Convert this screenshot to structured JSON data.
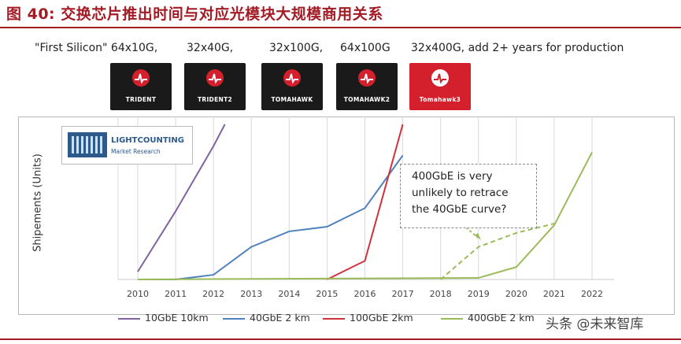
{
  "header": {
    "figure_title": "图 40:  交换芯片推出时间与对应光模块大规模商用关系"
  },
  "chips": {
    "caption_items": [
      "\"First Silicon\" 64x10G,",
      "32x40G,",
      "32x100G,",
      "64x100G",
      "32x400G,  add 2+ years for production"
    ],
    "names": [
      "TRIDENT",
      "TRIDENT2",
      "TOMAHAWK",
      "TOMAHAWK2",
      "Tomahawk3"
    ]
  },
  "logo": {
    "name": "LIGHTCOUNTING",
    "subtitle": "Market Research"
  },
  "annotation": {
    "lines": [
      "400GbE is very",
      "unlikely to retrace",
      "the 40GbE curve?"
    ]
  },
  "watermark": "头条 @未来智库",
  "colors": {
    "title": "#a31c25",
    "purple": "#8064a2",
    "blue": "#4f81bd",
    "red": "#d0313a",
    "green": "#9bbb59",
    "grid": "#d9d9d9"
  },
  "chart_data": {
    "type": "line",
    "ylabel": "Shipements (Units)",
    "xlabel": "",
    "categories": [
      "2010",
      "2011",
      "2012",
      "2013",
      "2014",
      "2015",
      "2016",
      "2017",
      "2018",
      "2019",
      "2020",
      "2021",
      "2022"
    ],
    "ylim": [
      0,
      100
    ],
    "y_tick_labels": "none",
    "grid": true,
    "legend_position": "bottom",
    "series": [
      {
        "name": "10GbE 10km",
        "color": "#8064a2",
        "style": "solid",
        "x": [
          2010,
          2011,
          2012,
          2012.3
        ],
        "y": [
          5,
          44,
          86,
          100
        ]
      },
      {
        "name": "40GbE 2 km",
        "color": "#4f81bd",
        "style": "solid",
        "x": [
          2010,
          2011,
          2012,
          2013,
          2014,
          2015,
          2016,
          2017
        ],
        "y": [
          0,
          0,
          3,
          21,
          31,
          34,
          46,
          80
        ]
      },
      {
        "name": "100GbE 2km",
        "color": "#d0313a",
        "style": "solid",
        "x": [
          2015,
          2016,
          2017
        ],
        "y": [
          0,
          12,
          100
        ]
      },
      {
        "name": "400GbE 2 km",
        "color": "#9bbb59",
        "style": "solid",
        "x": [
          2010,
          2019,
          2020,
          2021,
          2022
        ],
        "y": [
          0,
          1,
          8,
          35,
          82
        ]
      },
      {
        "name": "",
        "color": "#9bbb59",
        "style": "dashed",
        "x": [
          2018,
          2019,
          2020,
          2021
        ],
        "y": [
          0,
          21,
          30,
          36
        ]
      }
    ]
  }
}
